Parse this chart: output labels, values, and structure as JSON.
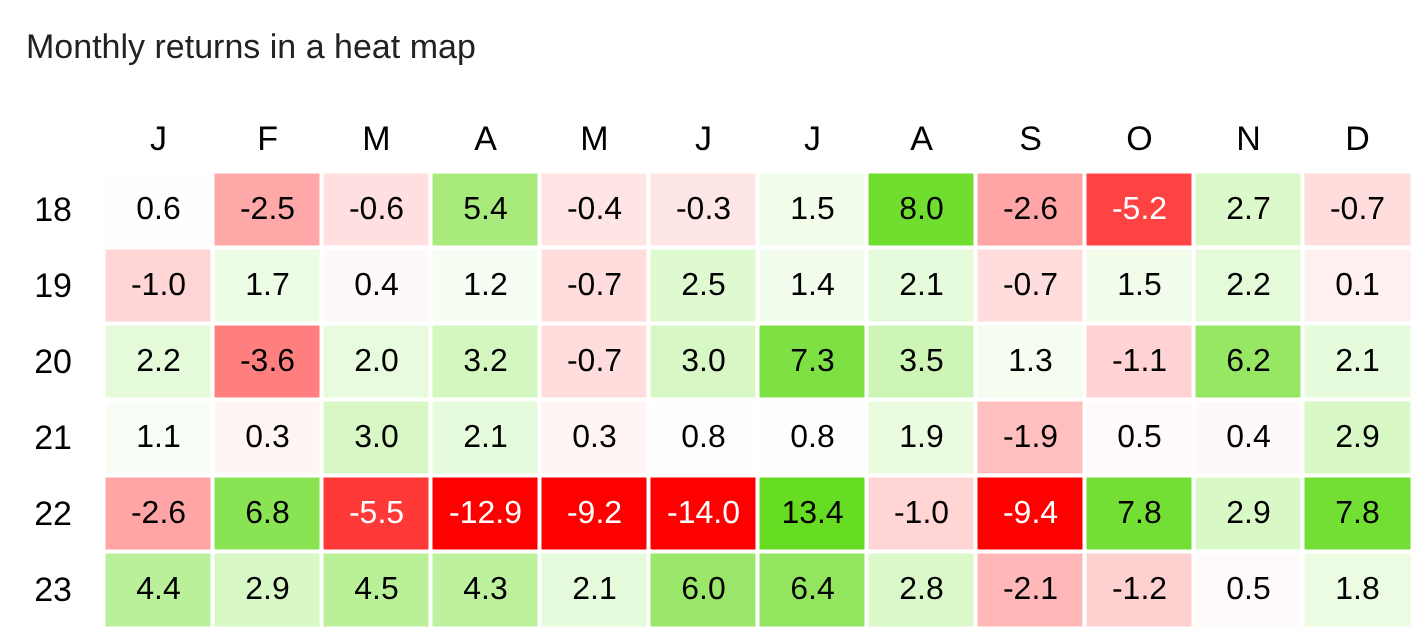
{
  "chart_data": {
    "type": "heatmap",
    "title": "Monthly returns in a heat map",
    "categories": [
      "J",
      "F",
      "M",
      "A",
      "M",
      "J",
      "J",
      "A",
      "S",
      "O",
      "N",
      "D"
    ],
    "y_categories": [
      "18",
      "19",
      "20",
      "21",
      "22",
      "23"
    ],
    "cells": [
      [
        0.6,
        -2.5,
        -0.6,
        5.4,
        -0.4,
        -0.3,
        1.5,
        8.0,
        -2.6,
        -5.2,
        2.7,
        -0.7
      ],
      [
        -1.0,
        1.7,
        0.4,
        1.2,
        -0.7,
        2.5,
        1.4,
        2.1,
        -0.7,
        1.5,
        2.2,
        0.1
      ],
      [
        2.2,
        -3.6,
        2.0,
        3.2,
        -0.7,
        3.0,
        7.3,
        3.5,
        1.3,
        -1.1,
        6.2,
        2.1
      ],
      [
        1.1,
        0.3,
        3.0,
        2.1,
        0.3,
        0.8,
        0.8,
        1.9,
        -1.9,
        0.5,
        0.4,
        2.9
      ],
      [
        -2.6,
        6.8,
        -5.5,
        -12.9,
        -9.2,
        -14.0,
        13.4,
        -1.0,
        -9.4,
        7.8,
        2.9,
        7.8
      ],
      [
        4.4,
        2.9,
        4.5,
        4.3,
        2.1,
        6.0,
        6.4,
        2.8,
        -2.1,
        -1.2,
        0.5,
        1.8
      ]
    ],
    "data_labels": true,
    "cell_labels": [
      [
        "0.6",
        "-2.5",
        "-0.6",
        "5.4",
        "-0.4",
        "-0.3",
        "1.5",
        "8.0",
        "-2.6",
        "-5.2",
        "2.7",
        "-0.7"
      ],
      [
        "-1.0",
        "1.7",
        "0.4",
        "1.2",
        "-0.7",
        "2.5",
        "1.4",
        "2.1",
        "-0.7",
        "1.5",
        "2.2",
        "0.1"
      ],
      [
        "2.2",
        "-3.6",
        "2.0",
        "3.2",
        "-0.7",
        "3.0",
        "7.3",
        "3.5",
        "1.3",
        "-1.1",
        "6.2",
        "2.1"
      ],
      [
        "1.1",
        "0.3",
        "3.0",
        "2.1",
        "0.3",
        "0.8",
        "0.8",
        "1.9",
        "-1.9",
        "0.5",
        "0.4",
        "2.9"
      ],
      [
        "-2.6",
        "6.8",
        "-5.5",
        "-12.9",
        "-9.2",
        "-14.0",
        "13.4",
        "-1.0",
        "-9.4",
        "7.8",
        "2.9",
        "7.8"
      ],
      [
        "4.4",
        "2.9",
        "4.5",
        "4.3",
        "2.1",
        "6.0",
        "6.4",
        "2.8",
        "-2.1",
        "-1.2",
        "0.5",
        "1.8"
      ]
    ]
  }
}
